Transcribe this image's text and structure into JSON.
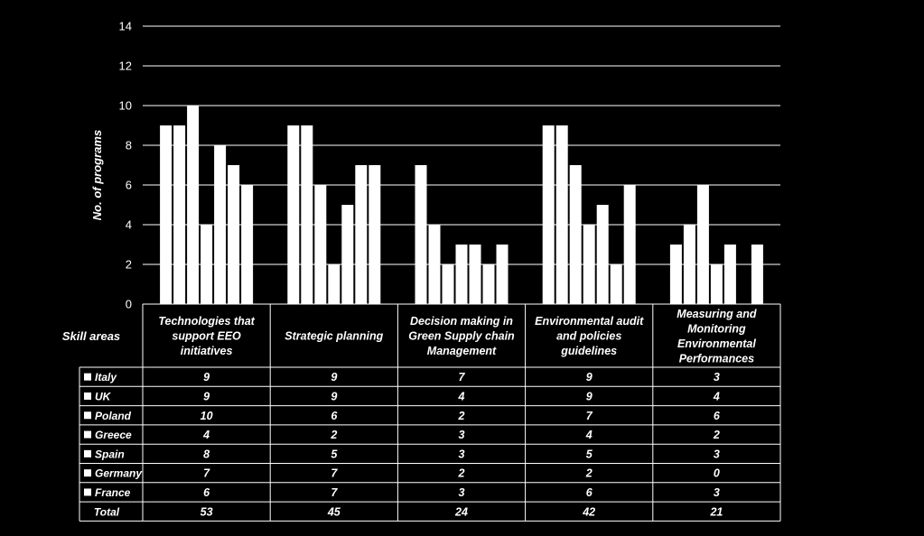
{
  "chart_data": {
    "type": "bar",
    "title": "",
    "xlabel": "",
    "ylabel": "No. of programs",
    "ylim": [
      0,
      14
    ],
    "yticks": [
      0,
      2,
      4,
      6,
      8,
      10,
      12,
      14
    ],
    "grid": true,
    "legend": "data-table",
    "bar_color": "#ffffff",
    "background": "#000000",
    "table_label": "Skill areas",
    "categories": [
      [
        "Technologies that",
        "support EEO",
        "initiatives"
      ],
      [
        "Strategic planning"
      ],
      [
        "Decision making in",
        "Green Supply chain",
        "Management"
      ],
      [
        "Environmental audit",
        "and policies",
        "guidelines"
      ],
      [
        "Measuring and",
        "Monitoring",
        "Environmental",
        "Performances"
      ]
    ],
    "series": [
      {
        "name": "Italy",
        "values": [
          9,
          9,
          7,
          9,
          3
        ]
      },
      {
        "name": "UK",
        "values": [
          9,
          9,
          4,
          9,
          4
        ]
      },
      {
        "name": "Poland",
        "values": [
          10,
          6,
          2,
          7,
          6
        ]
      },
      {
        "name": "Greece",
        "values": [
          4,
          2,
          3,
          4,
          2
        ]
      },
      {
        "name": "Spain",
        "values": [
          8,
          5,
          3,
          5,
          3
        ]
      },
      {
        "name": "Germany",
        "values": [
          7,
          7,
          2,
          2,
          0
        ]
      },
      {
        "name": "France",
        "values": [
          6,
          7,
          3,
          6,
          3
        ]
      }
    ],
    "total": {
      "label": "Total",
      "values": [
        53,
        45,
        24,
        42,
        21
      ]
    }
  }
}
